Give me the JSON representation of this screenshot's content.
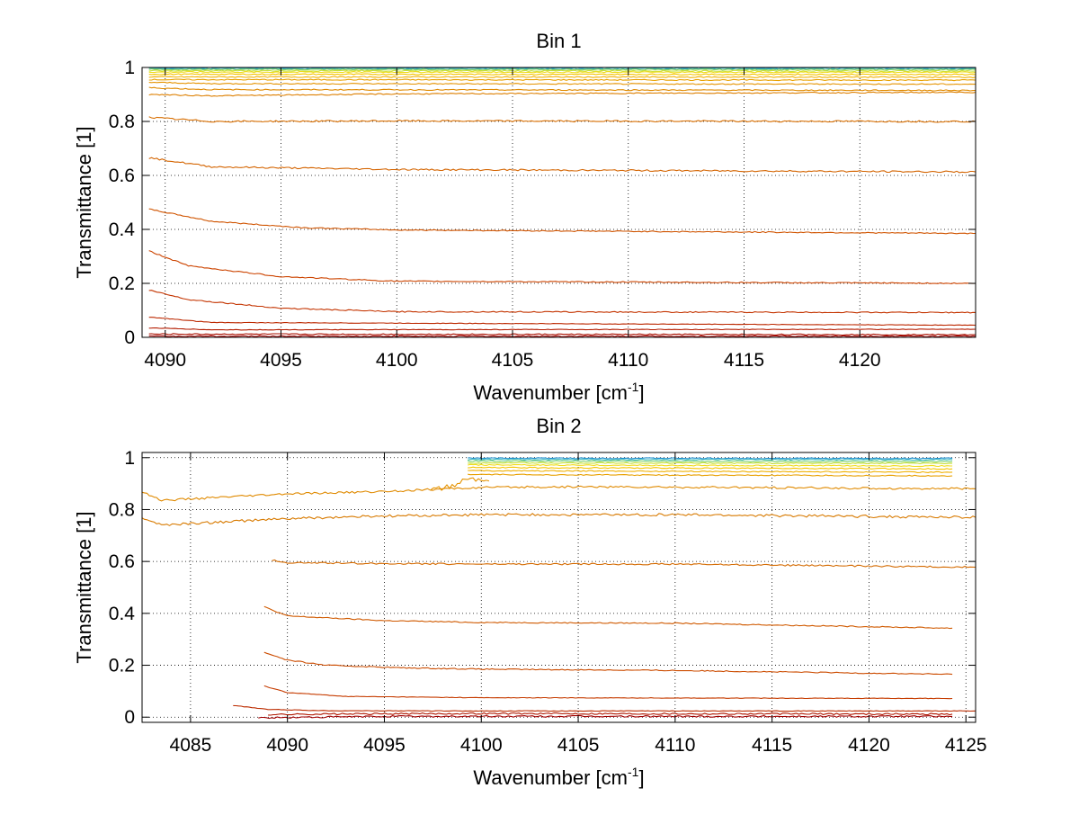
{
  "chart_data": [
    {
      "type": "line",
      "title": "Bin 1",
      "xlabel": "Wavenumber [cm",
      "xlabel_sup": "-1",
      "xlabel_end": "]",
      "ylabel": "Transmittance [1]",
      "xlim": [
        4089,
        4125
      ],
      "ylim": [
        0,
        1
      ],
      "xticks": [
        4090,
        4095,
        4100,
        4105,
        4110,
        4115,
        4120
      ],
      "yticks": [
        0,
        0.2,
        0.4,
        0.6,
        0.8,
        1
      ],
      "ytick_labels": [
        "0",
        "0.2",
        "0.4",
        "0.6",
        "0.8",
        "1"
      ],
      "grid": true,
      "series": [
        {
          "color": "#1f8fd0",
          "x": [
            4089.3,
            4125
          ],
          "y": [
            0.998,
            0.998
          ],
          "noise": 0.002
        },
        {
          "color": "#3bb8c0",
          "x": [
            4089.3,
            4125
          ],
          "y": [
            0.996,
            0.996
          ],
          "noise": 0.002
        },
        {
          "color": "#7fd06a",
          "x": [
            4089.3,
            4125
          ],
          "y": [
            0.993,
            0.992
          ],
          "noise": 0.002
        },
        {
          "color": "#c6e03a",
          "x": [
            4089.3,
            4125
          ],
          "y": [
            0.988,
            0.987
          ],
          "noise": 0.002
        },
        {
          "color": "#f0dc1c",
          "x": [
            4089.3,
            4125
          ],
          "y": [
            0.983,
            0.982
          ],
          "noise": 0.002
        },
        {
          "color": "#f5c400",
          "x": [
            4089.3,
            4125
          ],
          "y": [
            0.975,
            0.974
          ],
          "noise": 0.002
        },
        {
          "color": "#f0b000",
          "x": [
            4089.3,
            4125
          ],
          "y": [
            0.965,
            0.964
          ],
          "noise": 0.002
        },
        {
          "color": "#e8a000",
          "x": [
            4089.3,
            4125
          ],
          "y": [
            0.955,
            0.953
          ],
          "noise": 0.002
        },
        {
          "color": "#e59300",
          "x": [
            4089.3,
            4092,
            4125
          ],
          "y": [
            0.945,
            0.94,
            0.938
          ],
          "noise": 0.002
        },
        {
          "color": "#e08a00",
          "x": [
            4089.3,
            4092,
            4125
          ],
          "y": [
            0.925,
            0.918,
            0.915
          ],
          "noise": 0.002
        },
        {
          "color": "#dd7f00",
          "x": [
            4089.3,
            4092,
            4100,
            4125
          ],
          "y": [
            0.9,
            0.895,
            0.902,
            0.908
          ],
          "noise": 0.002
        },
        {
          "color": "#d86e00",
          "x": [
            4089.3,
            4092,
            4100,
            4125
          ],
          "y": [
            0.815,
            0.8,
            0.802,
            0.8
          ],
          "noise": 0.003
        },
        {
          "color": "#d46400",
          "x": [
            4089.3,
            4092,
            4100,
            4125
          ],
          "y": [
            0.665,
            0.632,
            0.622,
            0.613
          ],
          "noise": 0.003
        },
        {
          "color": "#d05400",
          "x": [
            4089.3,
            4092,
            4096,
            4100,
            4125
          ],
          "y": [
            0.475,
            0.43,
            0.406,
            0.398,
            0.385
          ],
          "noise": 0.002
        },
        {
          "color": "#cc4400",
          "x": [
            4089.3,
            4091,
            4095,
            4100,
            4125
          ],
          "y": [
            0.32,
            0.265,
            0.225,
            0.208,
            0.2
          ],
          "noise": 0.002
        },
        {
          "color": "#c43400",
          "x": [
            4089.3,
            4091,
            4095,
            4100,
            4125
          ],
          "y": [
            0.175,
            0.14,
            0.108,
            0.095,
            0.092
          ],
          "noise": 0.002
        },
        {
          "color": "#bc2800",
          "x": [
            4089.3,
            4092,
            4125
          ],
          "y": [
            0.075,
            0.055,
            0.045
          ],
          "noise": 0.001
        },
        {
          "color": "#b41c00",
          "x": [
            4089.3,
            4092,
            4125
          ],
          "y": [
            0.035,
            0.028,
            0.03
          ],
          "noise": 0.001
        },
        {
          "color": "#aa1000",
          "x": [
            4089.3,
            4125
          ],
          "y": [
            0.012,
            0.01
          ],
          "noise": 0.002
        },
        {
          "color": "#a00000",
          "x": [
            4089.3,
            4125
          ],
          "y": [
            0.004,
            0.004
          ],
          "noise": 0.002
        }
      ]
    },
    {
      "type": "line",
      "title": "Bin 2",
      "xlabel": "Wavenumber [cm",
      "xlabel_sup": "-1",
      "xlabel_end": "]",
      "ylabel": "Transmittance [1]",
      "xlim": [
        4082.5,
        4125.5
      ],
      "ylim": [
        -0.02,
        1.02
      ],
      "xticks": [
        4085,
        4090,
        4095,
        4100,
        4105,
        4110,
        4115,
        4120,
        4125
      ],
      "yticks": [
        0,
        0.2,
        0.4,
        0.6,
        0.8,
        1
      ],
      "ytick_labels": [
        "0",
        "0.2",
        "0.4",
        "0.6",
        "0.8",
        "1"
      ],
      "grid": true,
      "series": [
        {
          "color": "#1f8fd0",
          "x": [
            4099.3,
            4124.3
          ],
          "y": [
            0.998,
            0.997
          ],
          "noise": 0.002
        },
        {
          "color": "#3bb8c0",
          "x": [
            4099.3,
            4124.3
          ],
          "y": [
            0.993,
            0.992
          ],
          "noise": 0.002
        },
        {
          "color": "#7fd06a",
          "x": [
            4099.3,
            4124.3
          ],
          "y": [
            0.987,
            0.985
          ],
          "noise": 0.002
        },
        {
          "color": "#c6e03a",
          "x": [
            4099.3,
            4124.3
          ],
          "y": [
            0.98,
            0.978
          ],
          "noise": 0.002
        },
        {
          "color": "#f0dc1c",
          "x": [
            4099.3,
            4124.3
          ],
          "y": [
            0.972,
            0.968
          ],
          "noise": 0.002
        },
        {
          "color": "#f5c400",
          "x": [
            4099.3,
            4124.3
          ],
          "y": [
            0.962,
            0.957
          ],
          "noise": 0.002
        },
        {
          "color": "#f0b000",
          "x": [
            4099.3,
            4124.3
          ],
          "y": [
            0.95,
            0.944
          ],
          "noise": 0.002
        },
        {
          "color": "#e8a000",
          "x": [
            4099.3,
            4124.3
          ],
          "y": [
            0.935,
            0.93
          ],
          "noise": 0.002
        },
        {
          "color": "#e59300",
          "x": [
            4097.4,
            4098.5,
            4099.3,
            4100.4
          ],
          "y": [
            0.875,
            0.89,
            0.92,
            0.91
          ],
          "noise": 0.01
        },
        {
          "color": "#e08a00",
          "x": [
            4082.5,
            4083.5,
            4086,
            4090,
            4095,
            4100,
            4105,
            4125.5
          ],
          "y": [
            0.87,
            0.835,
            0.845,
            0.86,
            0.87,
            0.885,
            0.888,
            0.88
          ],
          "noise": 0.004
        },
        {
          "color": "#d87a00",
          "x": [
            4082.5,
            4083.5,
            4086,
            4090,
            4095,
            4100,
            4110,
            4125.5
          ],
          "y": [
            0.77,
            0.74,
            0.75,
            0.765,
            0.775,
            0.78,
            0.78,
            0.77
          ],
          "noise": 0.005
        },
        {
          "color": "#d46a00",
          "x": [
            4089.2,
            4090,
            4095,
            4100,
            4110,
            4125.5
          ],
          "y": [
            0.605,
            0.595,
            0.592,
            0.59,
            0.59,
            0.578
          ],
          "noise": 0.003
        },
        {
          "color": "#d05a00",
          "x": [
            4088.8,
            4090,
            4095,
            4100,
            4110,
            4124.3
          ],
          "y": [
            0.425,
            0.39,
            0.372,
            0.365,
            0.362,
            0.343
          ],
          "noise": 0.002
        },
        {
          "color": "#cc4c00",
          "x": [
            4088.8,
            4090,
            4092,
            4096,
            4100,
            4110,
            4124.3
          ],
          "y": [
            0.25,
            0.22,
            0.2,
            0.19,
            0.185,
            0.18,
            0.165
          ],
          "noise": 0.002
        },
        {
          "color": "#c63c00",
          "x": [
            4088.8,
            4090,
            4093,
            4100,
            4124.3
          ],
          "y": [
            0.12,
            0.095,
            0.08,
            0.075,
            0.072
          ],
          "noise": 0.001
        },
        {
          "color": "#bc2c00",
          "x": [
            4087.2,
            4089,
            4092,
            4100,
            4125.5
          ],
          "y": [
            0.045,
            0.03,
            0.025,
            0.024,
            0.024
          ],
          "noise": 0.001
        },
        {
          "color": "#b01800",
          "x": [
            4089,
            4092,
            4100,
            4124.3
          ],
          "y": [
            0.01,
            0.012,
            0.014,
            0.012
          ],
          "noise": 0.003
        },
        {
          "color": "#a00000",
          "x": [
            4088.5,
            4095,
            4124.3
          ],
          "y": [
            -0.003,
            0.003,
            0.003
          ],
          "noise": 0.003
        }
      ]
    }
  ]
}
